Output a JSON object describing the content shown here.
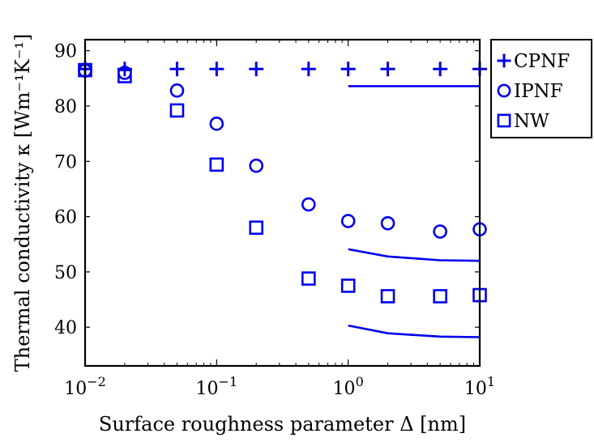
{
  "chart_data": {
    "type": "scatter",
    "xlabel": "Surface roughness parameter Δ [nm]",
    "ylabel": "Thermal conductivity κ [Wm⁻¹K⁻¹]",
    "x_scale": "log",
    "xlim": [
      0.01,
      10
    ],
    "ylim": [
      33,
      92
    ],
    "xticks": [
      {
        "value": 0.01,
        "base": "10",
        "exp": "−2"
      },
      {
        "value": 0.1,
        "base": "10",
        "exp": "−1"
      },
      {
        "value": 1,
        "base": "10",
        "exp": "0"
      },
      {
        "value": 10,
        "base": "10",
        "exp": "1"
      }
    ],
    "yticks": [
      40,
      50,
      60,
      70,
      80,
      90
    ],
    "grid": false,
    "legend_position": "outside-top-right",
    "color": "#0000ee",
    "series": [
      {
        "name": "CPNF",
        "marker": "plus",
        "x": [
          0.01,
          0.02,
          0.05,
          0.1,
          0.2,
          0.5,
          1,
          2,
          5,
          10
        ],
        "y": [
          86.7,
          86.7,
          86.7,
          86.7,
          86.7,
          86.7,
          86.7,
          86.7,
          86.7,
          86.7
        ]
      },
      {
        "name": "IPNF",
        "marker": "circle",
        "x": [
          0.01,
          0.02,
          0.05,
          0.1,
          0.2,
          0.5,
          1,
          2,
          5,
          10
        ],
        "y": [
          86.4,
          86.0,
          82.8,
          76.8,
          69.2,
          62.2,
          59.2,
          58.8,
          57.3,
          57.7
        ]
      },
      {
        "name": "NW",
        "marker": "square",
        "x": [
          0.01,
          0.02,
          0.05,
          0.1,
          0.2,
          0.5,
          1,
          2,
          5,
          10
        ],
        "y": [
          86.5,
          85.4,
          79.2,
          69.4,
          58.0,
          48.8,
          47.5,
          45.6,
          45.6,
          45.8
        ]
      }
    ],
    "lines": [
      {
        "x": [
          1,
          2,
          5,
          10
        ],
        "y": [
          83.6,
          83.6,
          83.6,
          83.6
        ]
      },
      {
        "x": [
          1,
          2,
          5,
          10
        ],
        "y": [
          54.1,
          52.8,
          52.1,
          52.0
        ]
      },
      {
        "x": [
          1,
          2,
          5,
          10
        ],
        "y": [
          40.3,
          38.9,
          38.3,
          38.2
        ]
      }
    ]
  }
}
